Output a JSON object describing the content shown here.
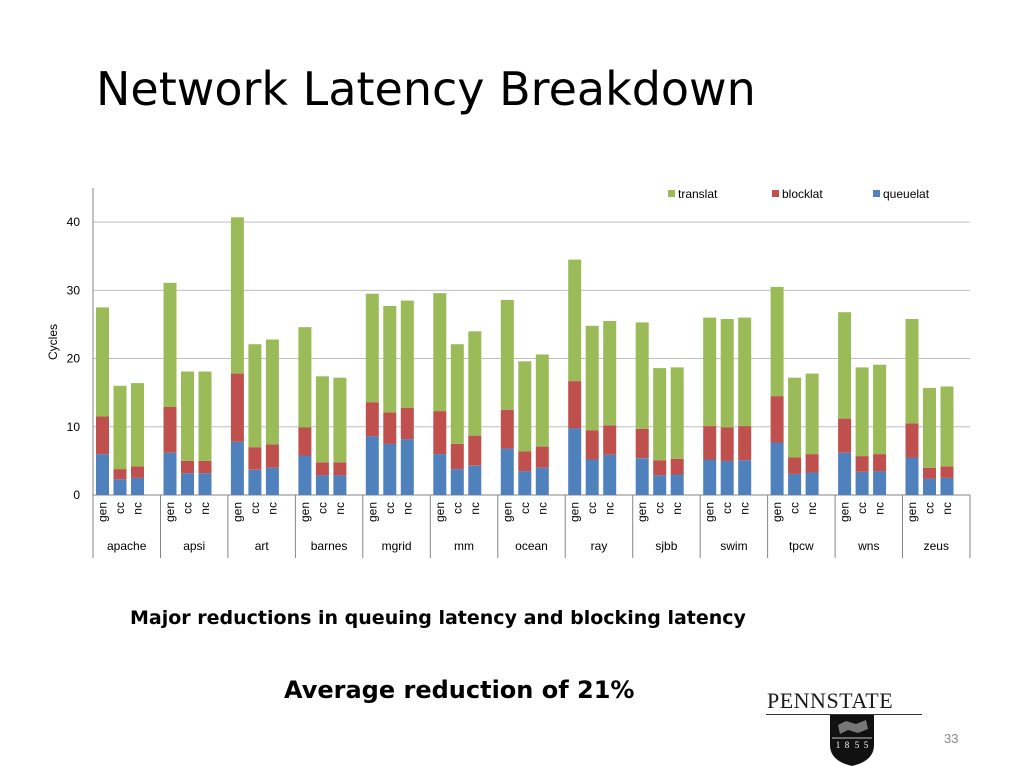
{
  "slide": {
    "title": "Network Latency Breakdown",
    "subtitle": "Major reductions in queuing latency and blocking latency",
    "average_note": "Average reduction of 21%",
    "logo_text": "PENNSTATE",
    "logo_year_digits": [
      "1",
      "8",
      "5",
      "5"
    ],
    "slide_number": "33"
  },
  "colors": {
    "queuelat": "#4f81bd",
    "blocklat": "#c0504d",
    "translat": "#9bbb59",
    "gridline": "#bfbfbf",
    "axis_text": "#000000"
  },
  "chart_data": {
    "type": "bar",
    "stacked": true,
    "ylabel": "Cycles",
    "xlabel": "",
    "ylim": [
      0,
      45
    ],
    "yticks": [
      0,
      10,
      20,
      30,
      40
    ],
    "grid": true,
    "legend_position": "top-right",
    "groups": [
      "apache",
      "apsi",
      "art",
      "barnes",
      "mgrid",
      "mm",
      "ocean",
      "ray",
      "sjbb",
      "swim",
      "tpcw",
      "wns",
      "zeus"
    ],
    "configs": [
      "gen",
      "cc",
      "nc"
    ],
    "series": [
      {
        "name": "queuelat",
        "values": [
          [
            6.0,
            2.3,
            2.5
          ],
          [
            6.2,
            3.2,
            3.2
          ],
          [
            7.8,
            3.7,
            4.0
          ],
          [
            5.8,
            2.9,
            2.9
          ],
          [
            8.6,
            7.5,
            8.2
          ],
          [
            6.0,
            3.8,
            4.3
          ],
          [
            6.8,
            3.5,
            4.0
          ],
          [
            9.8,
            5.2,
            5.9
          ],
          [
            5.4,
            2.9,
            3.0
          ],
          [
            5.2,
            5.0,
            5.1
          ],
          [
            7.7,
            3.1,
            3.3
          ],
          [
            6.2,
            3.4,
            3.5
          ],
          [
            5.5,
            2.4,
            2.5
          ]
        ]
      },
      {
        "name": "blocklat",
        "values": [
          [
            5.5,
            1.5,
            1.7
          ],
          [
            6.7,
            1.8,
            1.8
          ],
          [
            10.0,
            3.3,
            3.4
          ],
          [
            4.1,
            1.9,
            1.9
          ],
          [
            5.0,
            4.6,
            4.6
          ],
          [
            6.3,
            3.7,
            4.4
          ],
          [
            5.7,
            2.9,
            3.1
          ],
          [
            6.9,
            4.3,
            4.3
          ],
          [
            4.3,
            2.2,
            2.3
          ],
          [
            4.9,
            4.9,
            5.0
          ],
          [
            6.8,
            2.4,
            2.7
          ],
          [
            5.0,
            2.3,
            2.5
          ],
          [
            5.0,
            1.6,
            1.7
          ]
        ]
      },
      {
        "name": "translat",
        "values": [
          [
            16.0,
            12.2,
            12.2
          ],
          [
            18.2,
            13.1,
            13.1
          ],
          [
            22.9,
            15.1,
            15.4
          ],
          [
            14.7,
            12.6,
            12.4
          ],
          [
            15.9,
            15.6,
            15.7
          ],
          [
            17.3,
            14.6,
            15.3
          ],
          [
            16.1,
            13.2,
            13.5
          ],
          [
            17.8,
            15.3,
            15.3
          ],
          [
            15.6,
            13.5,
            13.4
          ],
          [
            15.9,
            15.9,
            15.9
          ],
          [
            16.0,
            11.7,
            11.8
          ],
          [
            15.6,
            13.0,
            13.1
          ],
          [
            15.3,
            11.7,
            11.7
          ]
        ]
      }
    ],
    "legend_order": [
      "translat",
      "blocklat",
      "queuelat"
    ]
  }
}
